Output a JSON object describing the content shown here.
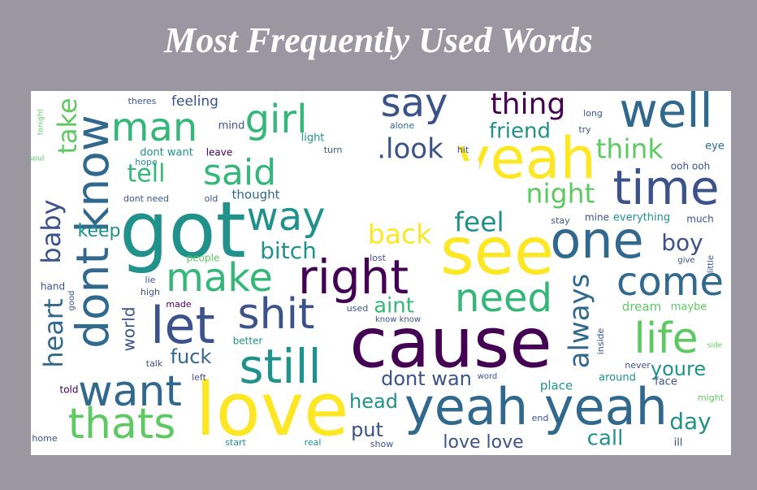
{
  "title": "Most Frequently Used Words",
  "wordcloud": {
    "words": [
      {
        "text": "got",
        "color": "#21918c"
      },
      {
        "text": "dont know",
        "color": "#31688e"
      },
      {
        "text": "love",
        "color": "#fde725"
      },
      {
        "text": "cause",
        "color": "#440154"
      },
      {
        "text": "see",
        "color": "#fde725"
      },
      {
        "text": "yeah",
        "color": "#fde725"
      },
      {
        "text": "one",
        "color": "#31688e"
      },
      {
        "text": "time",
        "color": "#3b528b"
      },
      {
        "text": "well",
        "color": "#31688e"
      },
      {
        "text": "yeah yeah",
        "color": "#31688e"
      },
      {
        "text": "right",
        "color": "#440154"
      },
      {
        "text": "let",
        "color": "#3b528b"
      },
      {
        "text": "shit",
        "color": "#3b528b"
      },
      {
        "text": "still",
        "color": "#21918c"
      },
      {
        "text": "want",
        "color": "#31688e"
      },
      {
        "text": "thats",
        "color": "#5ec962"
      },
      {
        "text": "life",
        "color": "#5ec962"
      },
      {
        "text": "need",
        "color": "#35b779"
      },
      {
        "text": "come",
        "color": "#31688e"
      },
      {
        "text": "make",
        "color": "#35b779"
      },
      {
        "text": "way",
        "color": "#21918c"
      },
      {
        "text": "man",
        "color": "#35b779"
      },
      {
        "text": "girl",
        "color": "#35b779"
      },
      {
        "text": "say",
        "color": "#3b528b"
      },
      {
        "text": "said",
        "color": "#35b779"
      },
      {
        "text": "thing",
        "color": "#440154"
      },
      {
        "text": "always",
        "color": "#31688e"
      },
      {
        "text": "heart",
        "color": "#31688e"
      },
      {
        "text": "baby",
        "color": "#3b528b"
      },
      {
        "text": "take",
        "color": "#5ec962"
      },
      {
        "text": ".look",
        "color": "#3b528b"
      },
      {
        "text": "night",
        "color": "#5ec962"
      },
      {
        "text": "think",
        "color": "#5ec962"
      },
      {
        "text": "feel",
        "color": "#21918c"
      },
      {
        "text": "back",
        "color": "#fde725"
      },
      {
        "text": "bitch",
        "color": "#21918c"
      },
      {
        "text": "boy",
        "color": "#3b528b"
      },
      {
        "text": "friend",
        "color": "#21918c"
      },
      {
        "text": "tell",
        "color": "#35b779"
      },
      {
        "text": "keep",
        "color": "#21918c"
      },
      {
        "text": "aint",
        "color": "#35b779"
      },
      {
        "text": "dont wan",
        "color": "#3b528b"
      },
      {
        "text": "head",
        "color": "#21918c"
      },
      {
        "text": "put",
        "color": "#3b528b"
      },
      {
        "text": "love love",
        "color": "#3b528b"
      },
      {
        "text": "call",
        "color": "#21918c"
      },
      {
        "text": "day",
        "color": "#21918c"
      },
      {
        "text": "youre",
        "color": "#21918c"
      },
      {
        "text": "world",
        "color": "#3b528b"
      },
      {
        "text": "fuck",
        "color": "#31688e"
      },
      {
        "text": "feeling",
        "color": "#3b528b"
      },
      {
        "text": "thought",
        "color": "#31688e"
      },
      {
        "text": "dream",
        "color": "#5ec962"
      },
      {
        "text": "maybe",
        "color": "#5ec962"
      },
      {
        "text": "everything",
        "color": "#21918c"
      },
      {
        "text": "mine",
        "color": "#3b528b"
      },
      {
        "text": "much",
        "color": "#3b528b"
      },
      {
        "text": "give",
        "color": "#3b528b"
      },
      {
        "text": "people",
        "color": "#5ec962"
      },
      {
        "text": "hand",
        "color": "#3b528b"
      },
      {
        "text": "dont want",
        "color": "#21918c"
      },
      {
        "text": "dont need",
        "color": "#3b528b"
      },
      {
        "text": "old",
        "color": "#3b528b"
      },
      {
        "text": "hope",
        "color": "#21918c"
      },
      {
        "text": "mind",
        "color": "#3b528b"
      },
      {
        "text": "light",
        "color": "#21918c"
      },
      {
        "text": "leave",
        "color": "#440154"
      },
      {
        "text": "turn",
        "color": "#3b528b"
      },
      {
        "text": "theres",
        "color": "#3b528b"
      },
      {
        "text": "alone",
        "color": "#31688e"
      },
      {
        "text": "try",
        "color": "#3b528b"
      },
      {
        "text": "eye",
        "color": "#31688e"
      },
      {
        "text": "ooh ooh",
        "color": "#3b528b"
      },
      {
        "text": "long",
        "color": "#3b528b"
      },
      {
        "text": "stay",
        "color": "#3b528b"
      },
      {
        "text": "made",
        "color": "#440154"
      },
      {
        "text": "better",
        "color": "#21918c"
      },
      {
        "text": "talk",
        "color": "#3b528b"
      },
      {
        "text": "left",
        "color": "#3b528b"
      },
      {
        "text": "told",
        "color": "#440154"
      },
      {
        "text": "home",
        "color": "#3b528b"
      },
      {
        "text": "real",
        "color": "#21918c"
      },
      {
        "text": "show",
        "color": "#3b528b"
      },
      {
        "text": "start",
        "color": "#21918c"
      },
      {
        "text": "end",
        "color": "#3b528b"
      },
      {
        "text": "place",
        "color": "#21918c"
      },
      {
        "text": "face",
        "color": "#3b528b"
      },
      {
        "text": "never",
        "color": "#3b528b"
      },
      {
        "text": "around",
        "color": "#21918c"
      },
      {
        "text": "inside",
        "color": "#3b528b"
      },
      {
        "text": "might",
        "color": "#5ec962"
      },
      {
        "text": "ill",
        "color": "#3b528b"
      },
      {
        "text": "side",
        "color": "#5ec962"
      },
      {
        "text": "used",
        "color": "#3b528b"
      },
      {
        "text": "lost",
        "color": "#3b528b"
      },
      {
        "text": "high",
        "color": "#3b528b"
      },
      {
        "text": "lie",
        "color": "#3b528b"
      },
      {
        "text": "good",
        "color": "#3b528b"
      },
      {
        "text": "little",
        "color": "#3b528b"
      },
      {
        "text": "know know",
        "color": "#3b528b"
      },
      {
        "text": "word",
        "color": "#3b528b"
      },
      {
        "text": "hit",
        "color": "#3b528b"
      },
      {
        "text": "tonight",
        "color": "#5ec962"
      },
      {
        "text": "soul",
        "color": "#5ec962"
      }
    ]
  }
}
